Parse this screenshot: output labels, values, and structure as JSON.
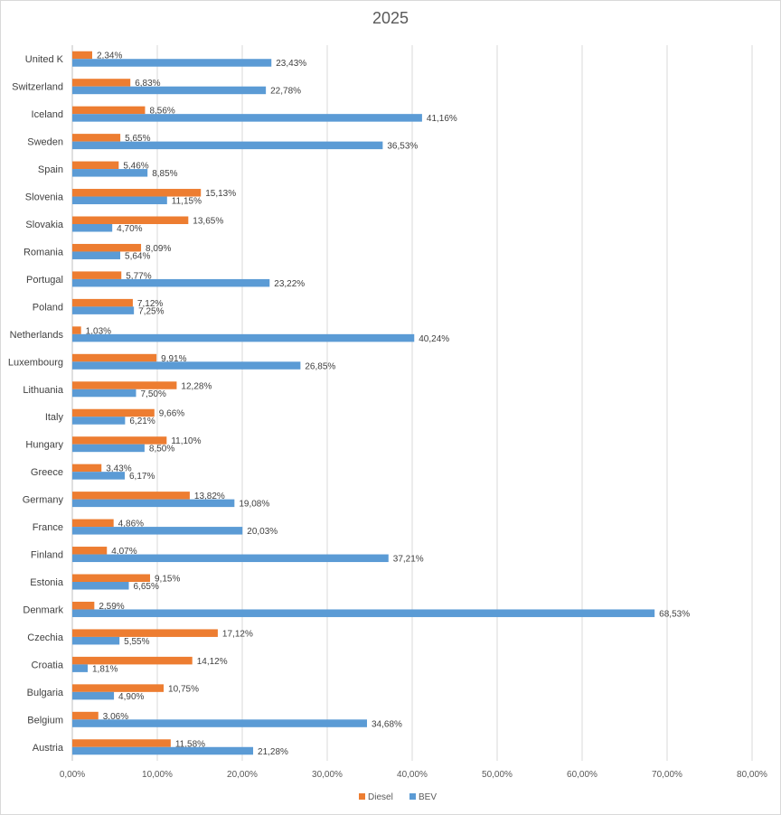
{
  "chart_data": {
    "type": "bar",
    "orientation": "horizontal",
    "title": "2025",
    "categories": [
      "United K",
      "Switzerland",
      "Iceland",
      "Sweden",
      "Spain",
      "Slovenia",
      "Slovakia",
      "Romania",
      "Portugal",
      "Poland",
      "Netherlands",
      "Luxembourg",
      "Lithuania",
      "Italy",
      "Hungary",
      "Greece",
      "Germany",
      "France",
      "Finland",
      "Estonia",
      "Denmark",
      "Czechia",
      "Croatia",
      "Bulgaria",
      "Belgium",
      "Austria"
    ],
    "series": [
      {
        "name": "Diesel",
        "color": "#ed7d31",
        "values": [
          2.34,
          6.83,
          8.56,
          5.65,
          5.46,
          15.13,
          13.65,
          8.09,
          5.77,
          7.12,
          1.03,
          9.91,
          12.28,
          9.66,
          11.1,
          3.43,
          13.82,
          4.86,
          4.07,
          9.15,
          2.59,
          17.12,
          14.12,
          10.75,
          3.06,
          11.58
        ],
        "labels": [
          "2,34%",
          "6,83%",
          "8,56%",
          "5,65%",
          "5,46%",
          "15,13%",
          "13,65%",
          "8,09%",
          "5,77%",
          "7,12%",
          "1,03%",
          "9,91%",
          "12,28%",
          "9,66%",
          "11,10%",
          "3,43%",
          "13,82%",
          "4,86%",
          "4,07%",
          "9,15%",
          "2,59%",
          "17,12%",
          "14,12%",
          "10,75%",
          "3,06%",
          "11,58%"
        ]
      },
      {
        "name": "BEV",
        "color": "#5b9bd5",
        "values": [
          23.43,
          22.78,
          41.16,
          36.53,
          8.85,
          11.15,
          4.7,
          5.64,
          23.22,
          7.25,
          40.24,
          26.85,
          7.5,
          6.21,
          8.5,
          6.17,
          19.08,
          20.03,
          37.21,
          6.65,
          68.53,
          5.55,
          1.81,
          4.9,
          34.68,
          21.28
        ],
        "labels": [
          "23,43%",
          "22,78%",
          "41,16%",
          "36,53%",
          "8,85%",
          "11,15%",
          "4,70%",
          "5,64%",
          "23,22%",
          "7,25%",
          "40,24%",
          "26,85%",
          "7,50%",
          "6,21%",
          "8,50%",
          "6,17%",
          "19,08%",
          "20,03%",
          "37,21%",
          "6,65%",
          "68,53%",
          "5,55%",
          "1,81%",
          "4,90%",
          "34,68%",
          "21,28%"
        ]
      }
    ],
    "xlim": [
      0,
      80
    ],
    "x_ticks": [
      0,
      10,
      20,
      30,
      40,
      50,
      60,
      70,
      80
    ],
    "x_tick_labels": [
      "0,00%",
      "10,00%",
      "20,00%",
      "30,00%",
      "40,00%",
      "50,00%",
      "60,00%",
      "70,00%",
      "80,00%"
    ],
    "grid": true,
    "legend_position": "bottom"
  }
}
